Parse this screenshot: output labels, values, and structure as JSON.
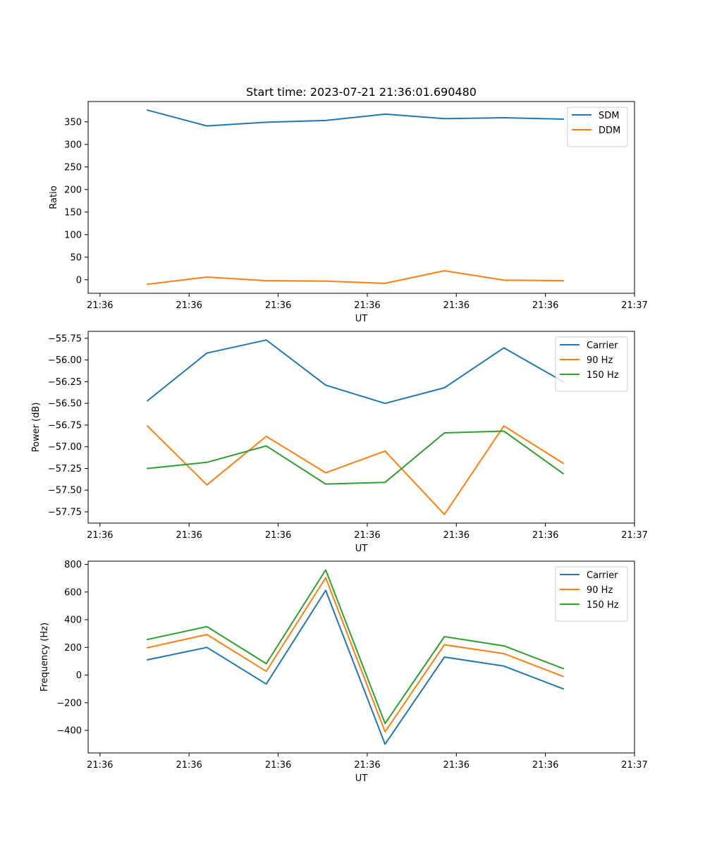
{
  "chart_data": [
    {
      "type": "line",
      "title": "Start time: 2023-07-21 21:36:01.690480",
      "xlabel": "UT",
      "ylabel": "Ratio",
      "xlim": [
        0,
        9.2
      ],
      "xticks": [
        0.2,
        1.7,
        3.2,
        4.7,
        6.2,
        7.7,
        9.2
      ],
      "xtick_labels": [
        "21:36",
        "21:36",
        "21:36",
        "21:36",
        "21:36",
        "21:36",
        "21:37"
      ],
      "ylim": [
        -30,
        395
      ],
      "yticks": [
        0,
        50,
        100,
        150,
        200,
        250,
        300,
        350
      ],
      "ytick_labels": [
        "0",
        "50",
        "100",
        "150",
        "200",
        "250",
        "300",
        "350"
      ],
      "legend": "top-right",
      "x": [
        1,
        2,
        3,
        4,
        5,
        6,
        7,
        8
      ],
      "series": [
        {
          "name": "SDM",
          "color": "#1f77b4",
          "values": [
            376,
            341,
            349,
            353,
            367,
            357,
            359,
            356
          ]
        },
        {
          "name": "DDM",
          "color": "#ff7f0e",
          "values": [
            -10,
            6,
            -2,
            -3,
            -8,
            20,
            -1,
            -2
          ]
        }
      ]
    },
    {
      "type": "line",
      "title": "",
      "xlabel": "UT",
      "ylabel": "Power (dB)",
      "xlim": [
        0,
        9.2
      ],
      "xticks": [
        0.2,
        1.7,
        3.2,
        4.7,
        6.2,
        7.7,
        9.2
      ],
      "xtick_labels": [
        "21:36",
        "21:36",
        "21:36",
        "21:36",
        "21:36",
        "21:36",
        "21:37"
      ],
      "ylim": [
        -57.88,
        -55.67
      ],
      "yticks": [
        -57.75,
        -57.5,
        -57.25,
        -57.0,
        -56.75,
        -56.5,
        -56.25,
        -56.0,
        -55.75
      ],
      "ytick_labels": [
        "−57.75",
        "−57.50",
        "−57.25",
        "−57.00",
        "−56.75",
        "−56.50",
        "−56.25",
        "−56.00",
        "−55.75"
      ],
      "legend": "top-right",
      "x": [
        1,
        2,
        3,
        4,
        5,
        6,
        7,
        8
      ],
      "series": [
        {
          "name": "Carrier",
          "color": "#1f77b4",
          "values": [
            -56.47,
            -55.92,
            -55.77,
            -56.29,
            -56.5,
            -56.32,
            -55.86,
            -56.25
          ]
        },
        {
          "name": "90 Hz",
          "color": "#ff7f0e",
          "values": [
            -56.76,
            -57.44,
            -56.88,
            -57.3,
            -57.05,
            -57.78,
            -56.76,
            -57.19
          ]
        },
        {
          "name": "150 Hz",
          "color": "#2ca02c",
          "values": [
            -57.25,
            -57.18,
            -56.99,
            -57.43,
            -57.41,
            -56.84,
            -56.82,
            -57.31
          ]
        }
      ]
    },
    {
      "type": "line",
      "title": "",
      "xlabel": "UT",
      "ylabel": "Frequency (Hz)",
      "xlim": [
        0,
        9.2
      ],
      "xticks": [
        0.2,
        1.7,
        3.2,
        4.7,
        6.2,
        7.7,
        9.2
      ],
      "xtick_labels": [
        "21:36",
        "21:36",
        "21:36",
        "21:36",
        "21:36",
        "21:36",
        "21:37"
      ],
      "ylim": [
        -563,
        823
      ],
      "yticks": [
        -400,
        -200,
        0,
        200,
        400,
        600,
        800
      ],
      "ytick_labels": [
        "−400",
        "−200",
        "0",
        "200",
        "400",
        "600",
        "800"
      ],
      "legend": "top-right",
      "x": [
        1,
        2,
        3,
        4,
        5,
        6,
        7,
        8
      ],
      "series": [
        {
          "name": "Carrier",
          "color": "#1f77b4",
          "values": [
            110,
            200,
            -65,
            612,
            -500,
            130,
            65,
            -100
          ]
        },
        {
          "name": "90 Hz",
          "color": "#ff7f0e",
          "values": [
            198,
            293,
            27,
            703,
            -410,
            219,
            155,
            -10
          ]
        },
        {
          "name": "150 Hz",
          "color": "#2ca02c",
          "values": [
            257,
            350,
            82,
            760,
            -350,
            278,
            211,
            47
          ]
        }
      ]
    }
  ]
}
